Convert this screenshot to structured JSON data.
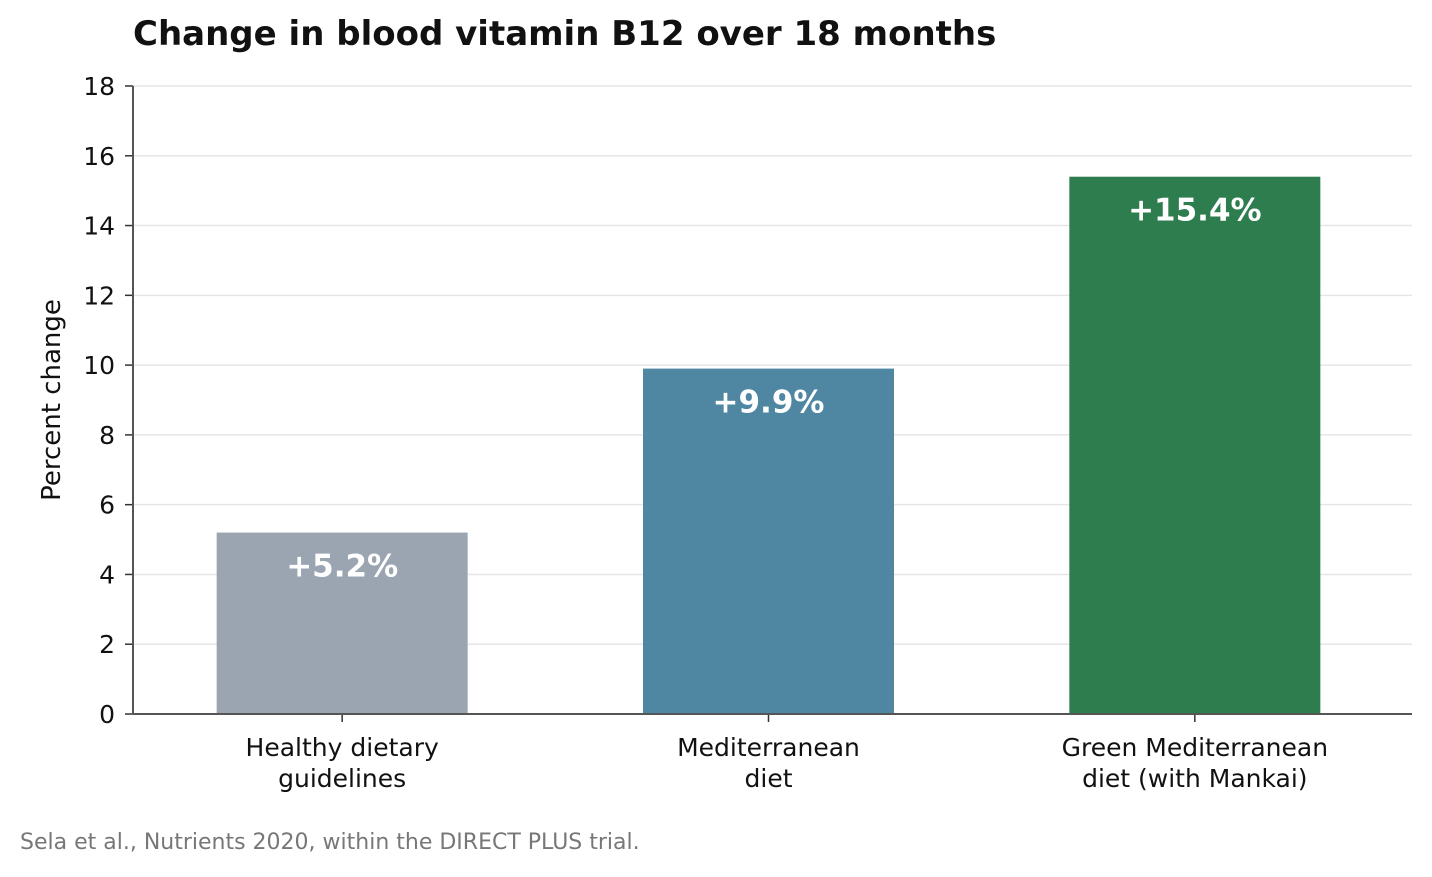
{
  "chart_data": {
    "type": "bar",
    "title": "Change in blood vitamin B12 over 18 months",
    "ylabel": "Percent change",
    "xlabel": "",
    "ylim": [
      0,
      18
    ],
    "yticks": [
      0,
      2,
      4,
      6,
      8,
      10,
      12,
      14,
      16,
      18
    ],
    "grid": true,
    "categories": [
      [
        "Healthy dietary",
        "guidelines"
      ],
      [
        "Mediterranean",
        "diet"
      ],
      [
        "Green Mediterranean",
        "diet (with Mankai)"
      ]
    ],
    "values": [
      5.2,
      9.9,
      15.4
    ],
    "data_labels": [
      "+5.2%",
      "+9.9%",
      "+15.4%"
    ],
    "colors": [
      "#9aa5b1",
      "#4f87a3",
      "#2e7d4f"
    ]
  },
  "source": "Sela et al., Nutrients 2020, within the DIRECT PLUS trial."
}
